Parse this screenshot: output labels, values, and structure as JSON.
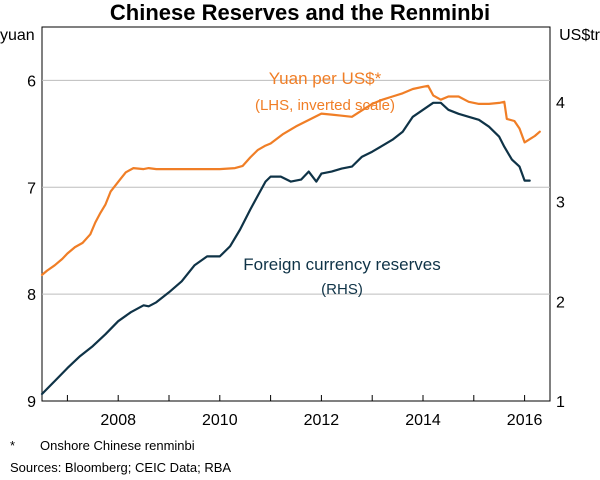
{
  "chart_data": {
    "type": "line",
    "title": "Chinese Reserves and the Renminbi",
    "left_axis": {
      "unit": "yuan",
      "range": [
        9,
        5.5
      ],
      "inverted": true,
      "ticks": [
        "6",
        "7",
        "8",
        "9"
      ],
      "tick_values": [
        6,
        7,
        8,
        9
      ]
    },
    "right_axis": {
      "unit": "US$tr",
      "range": [
        1,
        4.75
      ],
      "ticks": [
        "1",
        "2",
        "3",
        "4"
      ],
      "tick_values": [
        1,
        2,
        3,
        4
      ]
    },
    "x_axis": {
      "range": [
        2006.5,
        2016.5
      ],
      "ticks": [
        "2008",
        "2010",
        "2012",
        "2014",
        "2016"
      ],
      "tick_values": [
        2008,
        2010,
        2012,
        2014,
        2016
      ]
    },
    "series": [
      {
        "name": "Yuan per US$*",
        "axis": "left",
        "color": "#f07e26",
        "label": "Yuan per US$*",
        "sublabel": "(LHS, inverted scale)",
        "x": [
          2006.5,
          2006.6,
          2006.75,
          2006.9,
          2007.0,
          2007.15,
          2007.3,
          2007.45,
          2007.55,
          2007.65,
          2007.75,
          2007.85,
          2007.95,
          2008.05,
          2008.15,
          2008.3,
          2008.5,
          2008.6,
          2008.75,
          2009.0,
          2009.5,
          2010.0,
          2010.3,
          2010.45,
          2010.6,
          2010.75,
          2010.9,
          2011.0,
          2011.25,
          2011.5,
          2011.75,
          2012.0,
          2012.2,
          2012.4,
          2012.6,
          2012.8,
          2013.0,
          2013.2,
          2013.4,
          2013.6,
          2013.8,
          2014.0,
          2014.1,
          2014.2,
          2014.35,
          2014.5,
          2014.7,
          2014.9,
          2015.1,
          2015.3,
          2015.5,
          2015.6,
          2015.65,
          2015.8,
          2015.9,
          2016.0,
          2016.1,
          2016.2,
          2016.3
        ],
        "values": [
          7.82,
          7.78,
          7.73,
          7.67,
          7.62,
          7.56,
          7.52,
          7.44,
          7.33,
          7.24,
          7.16,
          7.04,
          6.98,
          6.92,
          6.86,
          6.82,
          6.83,
          6.82,
          6.83,
          6.83,
          6.83,
          6.83,
          6.82,
          6.8,
          6.72,
          6.65,
          6.61,
          6.59,
          6.5,
          6.43,
          6.37,
          6.31,
          6.32,
          6.33,
          6.34,
          6.28,
          6.22,
          6.18,
          6.15,
          6.12,
          6.08,
          6.06,
          6.05,
          6.14,
          6.18,
          6.15,
          6.15,
          6.2,
          6.22,
          6.22,
          6.21,
          6.2,
          6.36,
          6.38,
          6.45,
          6.58,
          6.55,
          6.52,
          6.48
        ]
      },
      {
        "name": "Foreign currency reserves",
        "axis": "right",
        "color": "#0f3347",
        "label": "Foreign currency reserves",
        "sublabel": "(RHS)",
        "x": [
          2006.5,
          2006.75,
          2007.0,
          2007.25,
          2007.5,
          2007.75,
          2008.0,
          2008.25,
          2008.5,
          2008.6,
          2008.75,
          2009.0,
          2009.25,
          2009.5,
          2009.75,
          2010.0,
          2010.2,
          2010.4,
          2010.6,
          2010.75,
          2010.9,
          2011.0,
          2011.2,
          2011.4,
          2011.6,
          2011.75,
          2011.9,
          2012.0,
          2012.2,
          2012.4,
          2012.6,
          2012.8,
          2013.0,
          2013.2,
          2013.4,
          2013.6,
          2013.8,
          2014.0,
          2014.2,
          2014.35,
          2014.5,
          2014.7,
          2014.9,
          2015.1,
          2015.3,
          2015.5,
          2015.6,
          2015.75,
          2015.9,
          2016.0,
          2016.1
        ],
        "values": [
          1.07,
          1.2,
          1.33,
          1.45,
          1.55,
          1.67,
          1.8,
          1.89,
          1.96,
          1.95,
          1.99,
          2.09,
          2.2,
          2.36,
          2.45,
          2.45,
          2.55,
          2.72,
          2.92,
          3.06,
          3.2,
          3.25,
          3.25,
          3.2,
          3.22,
          3.3,
          3.2,
          3.28,
          3.3,
          3.33,
          3.35,
          3.45,
          3.5,
          3.56,
          3.62,
          3.7,
          3.85,
          3.92,
          3.99,
          3.99,
          3.92,
          3.88,
          3.85,
          3.82,
          3.75,
          3.65,
          3.55,
          3.42,
          3.35,
          3.21,
          3.21
        ]
      }
    ]
  },
  "footnotes": {
    "asterisk_mark": "*",
    "asterisk_text": "Onshore Chinese renminbi",
    "sources": "Sources:  Bloomberg; CEIC Data; RBA"
  }
}
